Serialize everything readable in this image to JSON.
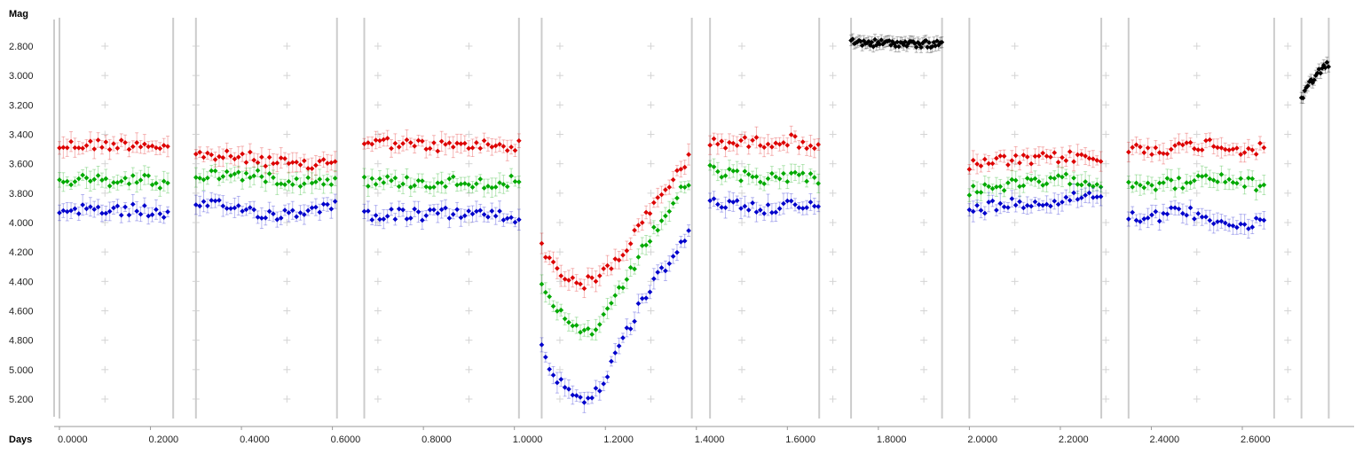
{
  "chart_data": {
    "type": "scatter",
    "ylabel": "Mag",
    "xlabel": "Days",
    "y_inverted": true,
    "xlim": [
      -0.01,
      2.79
    ],
    "ylim": [
      2.6,
      5.35
    ],
    "yticks": [
      2.8,
      3.0,
      3.2,
      3.4,
      3.6,
      3.8,
      4.0,
      4.2,
      4.4,
      4.6,
      4.8,
      5.0,
      5.2
    ],
    "ytick_labels": [
      "2.800",
      "3.000",
      "3.200",
      "3.400",
      "3.600",
      "3.800",
      "4.000",
      "4.200",
      "4.400",
      "4.600",
      "4.800",
      "5.000",
      "5.200"
    ],
    "xticks": [
      0.0,
      0.2,
      0.4,
      0.6,
      0.8,
      1.0,
      1.2,
      1.4,
      1.6,
      1.8,
      2.0,
      2.2,
      2.4,
      2.6
    ],
    "xtick_labels": [
      "0.0000",
      "0.2000",
      "0.4000",
      "0.6000",
      "0.8000",
      "1.0000",
      "1.2000",
      "1.4000",
      "1.6000",
      "1.8000",
      "2.0000",
      "2.2000",
      "2.4000",
      "2.6000"
    ],
    "grid": "crosses",
    "error_bars": true,
    "segment_bounds": [
      [
        0.0,
        0.25
      ],
      [
        0.3,
        0.61
      ],
      [
        0.67,
        1.01
      ],
      [
        1.06,
        1.39
      ],
      [
        1.43,
        1.67
      ],
      [
        1.74,
        1.94
      ],
      [
        2.0,
        2.29
      ],
      [
        2.35,
        2.67
      ],
      [
        2.73,
        2.79
      ]
    ],
    "series": [
      {
        "color": "#dd0000",
        "segments": [
          {
            "x": [
              0.0,
              0.06,
              0.12,
              0.18,
              0.24
            ],
            "y": [
              3.48,
              3.47,
              3.47,
              3.46,
              3.49
            ]
          },
          {
            "x": [
              0.3,
              0.36,
              0.42,
              0.48,
              0.54,
              0.61
            ],
            "y": [
              3.54,
              3.55,
              3.56,
              3.59,
              3.62,
              3.57
            ]
          },
          {
            "x": [
              0.67,
              0.74,
              0.81,
              0.88,
              0.95,
              1.01
            ],
            "y": [
              3.45,
              3.46,
              3.48,
              3.48,
              3.47,
              3.48
            ]
          },
          {
            "x": [
              1.06,
              1.09,
              1.12,
              1.15,
              1.18,
              1.21,
              1.24,
              1.27,
              1.3,
              1.33,
              1.36,
              1.39
            ],
            "y": [
              4.15,
              4.32,
              4.38,
              4.42,
              4.38,
              4.3,
              4.2,
              4.05,
              3.92,
              3.78,
              3.65,
              3.55
            ]
          },
          {
            "x": [
              1.43,
              1.49,
              1.55,
              1.61,
              1.67
            ],
            "y": [
              3.45,
              3.46,
              3.45,
              3.44,
              3.48
            ]
          },
          {
            "x": [
              2.0,
              2.06,
              2.12,
              2.18,
              2.24,
              2.29
            ],
            "y": [
              3.62,
              3.58,
              3.58,
              3.56,
              3.55,
              3.58
            ]
          },
          {
            "x": [
              2.35,
              2.41,
              2.47,
              2.53,
              2.59,
              2.65
            ],
            "y": [
              3.5,
              3.5,
              3.49,
              3.46,
              3.5,
              3.5
            ]
          }
        ]
      },
      {
        "color": "#00aa00",
        "segments": [
          {
            "x": [
              0.0,
              0.06,
              0.12,
              0.18,
              0.24
            ],
            "y": [
              3.72,
              3.71,
              3.72,
              3.7,
              3.75
            ]
          },
          {
            "x": [
              0.3,
              0.36,
              0.42,
              0.48,
              0.54,
              0.61
            ],
            "y": [
              3.68,
              3.67,
              3.68,
              3.7,
              3.72,
              3.7
            ]
          },
          {
            "x": [
              0.67,
              0.74,
              0.81,
              0.88,
              0.95,
              1.01
            ],
            "y": [
              3.72,
              3.72,
              3.73,
              3.72,
              3.73,
              3.72
            ]
          },
          {
            "x": [
              1.06,
              1.09,
              1.12,
              1.15,
              1.18,
              1.21,
              1.24,
              1.27,
              1.3,
              1.33,
              1.36,
              1.39
            ],
            "y": [
              4.45,
              4.6,
              4.68,
              4.75,
              4.72,
              4.6,
              4.42,
              4.25,
              4.1,
              3.95,
              3.82,
              3.7
            ]
          },
          {
            "x": [
              1.43,
              1.49,
              1.55,
              1.61,
              1.67
            ],
            "y": [
              3.65,
              3.68,
              3.7,
              3.68,
              3.7
            ]
          },
          {
            "x": [
              2.0,
              2.06,
              2.12,
              2.18,
              2.24,
              2.29
            ],
            "y": [
              3.78,
              3.75,
              3.74,
              3.72,
              3.7,
              3.75
            ]
          },
          {
            "x": [
              2.35,
              2.41,
              2.47,
              2.53,
              2.59,
              2.65
            ],
            "y": [
              3.72,
              3.74,
              3.73,
              3.7,
              3.72,
              3.76
            ]
          }
        ]
      },
      {
        "color": "#0000cc",
        "segments": [
          {
            "x": [
              0.0,
              0.06,
              0.12,
              0.18,
              0.24
            ],
            "y": [
              3.92,
              3.9,
              3.92,
              3.91,
              3.96
            ]
          },
          {
            "x": [
              0.3,
              0.36,
              0.42,
              0.48,
              0.54,
              0.61
            ],
            "y": [
              3.9,
              3.88,
              3.92,
              3.95,
              3.92,
              3.86
            ]
          },
          {
            "x": [
              0.67,
              0.74,
              0.81,
              0.88,
              0.95,
              1.01
            ],
            "y": [
              3.95,
              3.94,
              3.95,
              3.93,
              3.95,
              3.97
            ]
          },
          {
            "x": [
              1.06,
              1.09,
              1.12,
              1.15,
              1.18,
              1.21,
              1.24,
              1.27,
              1.3,
              1.33,
              1.36,
              1.39
            ],
            "y": [
              4.85,
              5.05,
              5.15,
              5.2,
              5.15,
              5.0,
              4.8,
              4.6,
              4.45,
              4.3,
              4.2,
              4.05
            ]
          },
          {
            "x": [
              1.43,
              1.49,
              1.55,
              1.61,
              1.67
            ],
            "y": [
              3.86,
              3.88,
              3.9,
              3.88,
              3.9
            ]
          },
          {
            "x": [
              2.0,
              2.06,
              2.12,
              2.18,
              2.24,
              2.29
            ],
            "y": [
              3.92,
              3.88,
              3.86,
              3.86,
              3.82,
              3.8
            ]
          },
          {
            "x": [
              2.35,
              2.41,
              2.47,
              2.53,
              2.59,
              2.65
            ],
            "y": [
              3.95,
              3.96,
              3.92,
              3.96,
              4.03,
              4.0
            ]
          }
        ]
      },
      {
        "color": "#000000",
        "segments": [
          {
            "x": [
              1.74,
              1.79,
              1.84,
              1.89,
              1.94
            ],
            "y": [
              2.77,
              2.78,
              2.78,
              2.79,
              2.78
            ]
          },
          {
            "x": [
              2.73,
              2.75,
              2.77,
              2.79
            ],
            "y": [
              3.16,
              3.05,
              2.97,
              2.92
            ]
          }
        ]
      }
    ]
  }
}
